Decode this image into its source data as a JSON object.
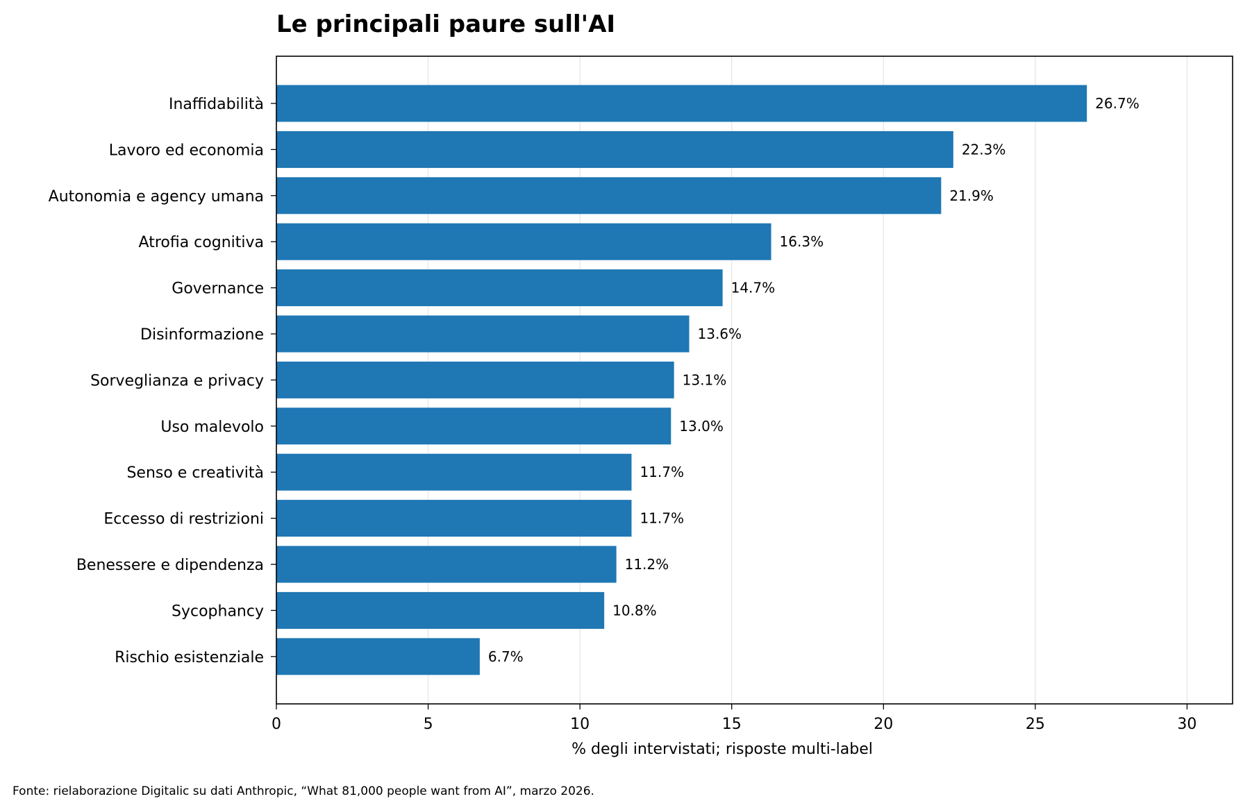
{
  "chart_data": {
    "type": "bar",
    "orientation": "horizontal",
    "title": "Le principali paure sull'AI",
    "xlabel": "% degli intervistati; risposte multi-label",
    "ylabel": "",
    "xlim": [
      0,
      31.5
    ],
    "xticks": [
      0,
      5,
      10,
      15,
      20,
      25,
      30
    ],
    "grid": "vertical",
    "categories": [
      "Inaffidabilità",
      "Lavoro ed economia",
      "Autonomia e agency umana",
      "Atrofia cognitiva",
      "Governance",
      "Disinformazione",
      "Sorveglianza e privacy",
      "Uso malevolo",
      "Senso e creatività",
      "Eccesso di restrizioni",
      "Benessere e dipendenza",
      "Sycophancy",
      "Rischio esistenziale"
    ],
    "values": [
      26.7,
      22.3,
      21.9,
      16.3,
      14.7,
      13.6,
      13.1,
      13.0,
      11.7,
      11.7,
      11.2,
      10.8,
      6.7
    ],
    "value_labels": [
      "26.7%",
      "22.3%",
      "21.9%",
      "16.3%",
      "14.7%",
      "13.6%",
      "13.1%",
      "13.0%",
      "11.7%",
      "11.7%",
      "11.2%",
      "10.8%",
      "6.7%"
    ],
    "bar_color": "#1f77b4",
    "grid_color": "#e6e6e6",
    "source": "Fonte: rielaborazione Digitalic su dati Anthropic, “What 81,000 people want from AI”, marzo 2026."
  }
}
